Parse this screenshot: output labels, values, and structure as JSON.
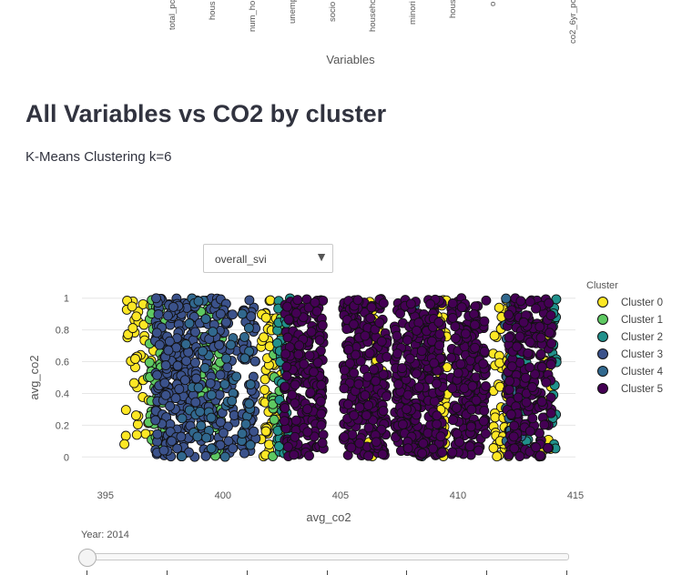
{
  "top_axis": {
    "labels": [
      "total_pc",
      "hous",
      "num_ho",
      "unemp",
      "socio",
      "househo",
      "minori",
      "hous",
      "o",
      "co2_6yr_pc"
    ],
    "title": "Variables"
  },
  "section": {
    "title": "All Variables vs CO2 by cluster",
    "subtitle": "K-Means Clustering k=6"
  },
  "dropdown": {
    "value": "overall_svi"
  },
  "slider": {
    "label": "Year: 2014",
    "tick_count": 7
  },
  "chart_data": {
    "type": "scatter",
    "xlabel": "avg_co2",
    "ylabel": "avg_co2",
    "xlim": [
      394,
      415
    ],
    "ylim": [
      -0.05,
      1.05
    ],
    "xticks": [
      395,
      400,
      405,
      410,
      415
    ],
    "yticks": [
      0,
      0.2,
      0.4,
      0.6,
      0.8,
      1
    ],
    "grid": true,
    "legend_title": "Cluster",
    "legend_position": "right",
    "series": [
      {
        "name": "Cluster 0",
        "color": "#fde725",
        "bands": [
          [
            395.8,
            397.2,
            50
          ],
          [
            401.6,
            402.6,
            60
          ],
          [
            406.2,
            406.8,
            30
          ],
          [
            409.1,
            409.6,
            40
          ],
          [
            411.5,
            412.3,
            50
          ],
          [
            413.6,
            414.0,
            20
          ]
        ]
      },
      {
        "name": "Cluster 1",
        "color": "#5ec962",
        "bands": [
          [
            396.8,
            397.6,
            70
          ],
          [
            399.0,
            400.0,
            70
          ],
          [
            402.0,
            402.5,
            25
          ]
        ]
      },
      {
        "name": "Cluster 2",
        "color": "#21918c",
        "bands": [
          [
            402.3,
            402.9,
            40
          ],
          [
            412.2,
            413.0,
            35
          ],
          [
            414.0,
            414.2,
            20
          ]
        ]
      },
      {
        "name": "Cluster 3",
        "color": "#3b528b",
        "bands": [
          [
            397.1,
            398.8,
            220
          ],
          [
            398.8,
            400.6,
            120
          ],
          [
            400.8,
            401.4,
            60
          ]
        ]
      },
      {
        "name": "Cluster 4",
        "color": "#31688e",
        "bands": [
          [
            398.2,
            399.6,
            30
          ],
          [
            400.0,
            401.2,
            25
          ],
          [
            408.0,
            409.2,
            20
          ],
          [
            412.0,
            413.0,
            25
          ]
        ]
      },
      {
        "name": "Cluster 5",
        "color": "#440154",
        "bands": [
          [
            402.6,
            404.3,
            220
          ],
          [
            405.1,
            407.0,
            260
          ],
          [
            407.3,
            409.4,
            300
          ],
          [
            409.7,
            411.2,
            220
          ],
          [
            412.1,
            414.0,
            220
          ]
        ]
      }
    ]
  }
}
